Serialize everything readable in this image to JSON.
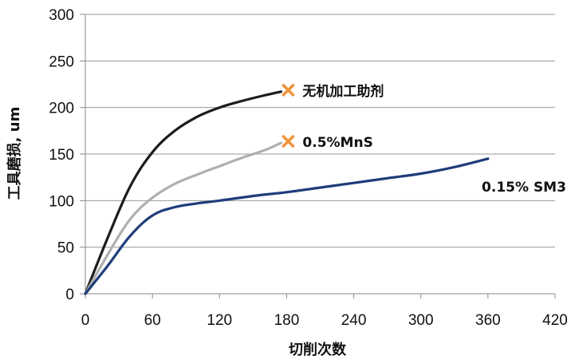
{
  "chart_data": {
    "type": "line",
    "title": "",
    "xlabel": "切削次数",
    "ylabel": "工具磨损, um",
    "xlim": [
      0,
      420
    ],
    "ylim": [
      0,
      300
    ],
    "xticks": [
      "0",
      "60",
      "120",
      "180",
      "240",
      "300",
      "360",
      "420"
    ],
    "yticks": [
      "0",
      "50",
      "100",
      "150",
      "200",
      "250",
      "300"
    ],
    "grid": "horizontal",
    "legend": "none",
    "series": [
      {
        "name": "无机加工助剂",
        "color": "#1c1c1c",
        "end_marker": "x",
        "marker_color": "#f0923a",
        "x": [
          0,
          20,
          40,
          60,
          80,
          100,
          120,
          140,
          160,
          175
        ],
        "y": [
          0,
          60,
          115,
          152,
          175,
          190,
          200,
          207,
          213,
          217
        ]
      },
      {
        "name": "0.5%MnS",
        "color": "#b0b0b0",
        "end_marker": "x",
        "marker_color": "#f0923a",
        "x": [
          0,
          20,
          40,
          60,
          80,
          100,
          120,
          140,
          160,
          175
        ],
        "y": [
          0,
          42,
          80,
          103,
          118,
          128,
          137,
          146,
          154,
          162
        ]
      },
      {
        "name": "0.15% SM3",
        "color": "#1f3d7a",
        "end_marker": "none",
        "x": [
          0,
          20,
          40,
          60,
          80,
          100,
          120,
          150,
          180,
          210,
          240,
          270,
          300,
          330,
          360
        ],
        "y": [
          0,
          30,
          62,
          84,
          93,
          97,
          100,
          105,
          109,
          114,
          119,
          124,
          129,
          136,
          145
        ]
      }
    ]
  }
}
